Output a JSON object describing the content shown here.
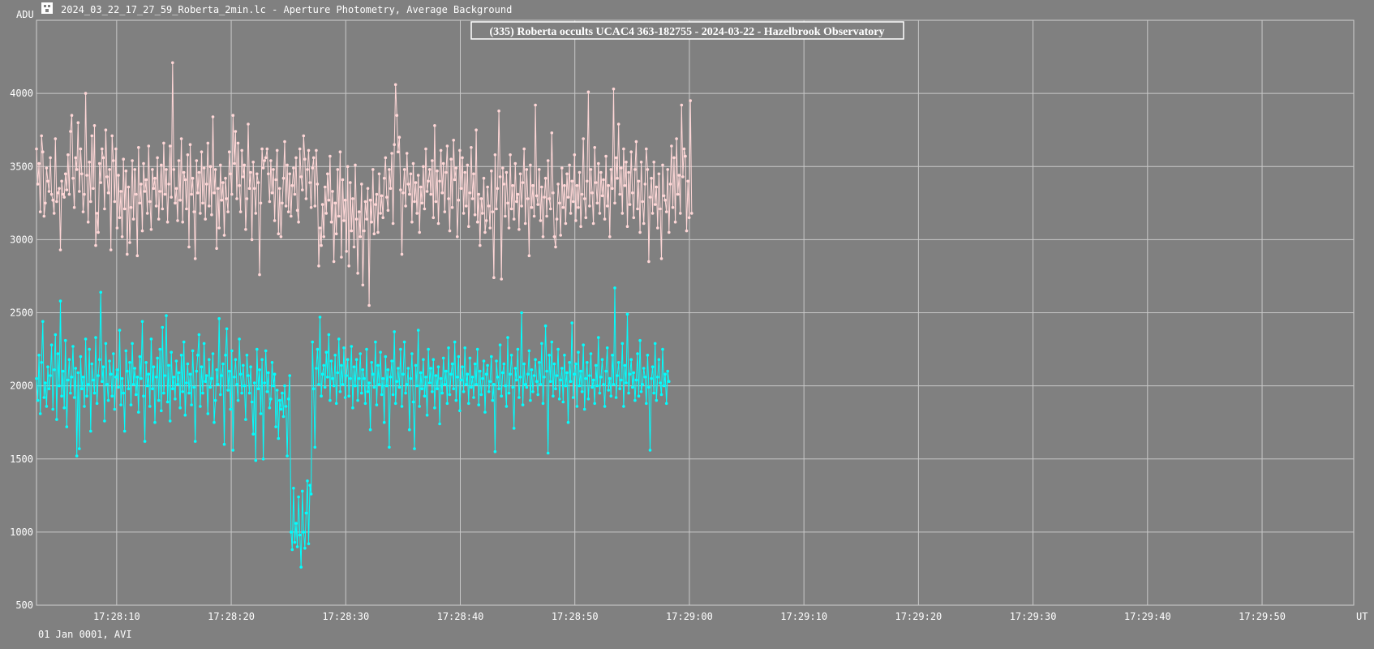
{
  "window": {
    "title": "2024_03_22_17_27_59_Roberta_2min.lc - Aperture Photometry, Average Background",
    "footer": "01 Jan 0001, AVI"
  },
  "icons": {
    "app": "app-logo-icon"
  },
  "chart_data": {
    "type": "line",
    "title": "(335) Roberta occults UCAC4 363-182755 - 2024-03-22 - Hazelbrook Observatory",
    "ylabel": "ADU",
    "xlabel": "UT",
    "ylim": [
      500,
      4500
    ],
    "xlim": [
      "17:28:03",
      "17:29:58"
    ],
    "x_ticks": [
      "17:28:10",
      "17:28:20",
      "17:28:30",
      "17:28:40",
      "17:28:50",
      "17:29:00",
      "17:29:10",
      "17:29:20",
      "17:29:30",
      "17:29:40",
      "17:29:50"
    ],
    "y_ticks": [
      500,
      1000,
      1500,
      2000,
      2500,
      3000,
      3500,
      4000
    ],
    "grid": true,
    "colors": {
      "background": "#808080",
      "grid": "#c8c8c8",
      "text": "#ffffff"
    },
    "series": [
      {
        "color": "#ffd7d7",
        "x_start": "17:28:03",
        "x_step_s": 0.11,
        "values": [
          3620,
          3380,
          3520,
          3190,
          3710,
          3600,
          3160,
          3250,
          3490,
          3400,
          3330,
          3560,
          3310,
          3270,
          3180,
          3690,
          3260,
          3320,
          3350,
          2930,
          3400,
          3310,
          3290,
          3450,
          3340,
          3580,
          3310,
          3740,
          3850,
          3420,
          3220,
          3560,
          3480,
          3800,
          3330,
          3620,
          3450,
          3190,
          3310,
          4000,
          3440,
          3120,
          3530,
          3260,
          3710,
          3350,
          3780,
          2960,
          3180,
          3050,
          3520,
          3390,
          3620,
          3560,
          3210,
          3750,
          3430,
          3320,
          3480,
          2930,
          3710,
          3540,
          3260,
          3620,
          3080,
          3440,
          3150,
          3330,
          3020,
          3550,
          3210,
          3470,
          2900,
          3360,
          2980,
          3220,
          3540,
          3140,
          3480,
          3310,
          2890,
          3630,
          3250,
          3380,
          3060,
          3520,
          3330,
          3410,
          3180,
          3640,
          3260,
          3070,
          3480,
          3350,
          3420,
          3230,
          3560,
          3140,
          3330,
          3510,
          3210,
          3660,
          3310,
          3480,
          3120,
          3380,
          3640,
          3290,
          4210,
          3480,
          3250,
          3350,
          3130,
          3540,
          3270,
          3690,
          3120,
          3460,
          3410,
          3210,
          3580,
          2950,
          3650,
          3310,
          3420,
          3190,
          2870,
          3540,
          3320,
          3460,
          3180,
          3600,
          3250,
          3490,
          3140,
          3380,
          3660,
          3230,
          3500,
          3170,
          3840,
          3320,
          3480,
          2940,
          3350,
          3080,
          3510,
          3270,
          3390,
          3030,
          3420,
          3280,
          3190,
          3600,
          3450,
          3310,
          3850,
          3520,
          3740,
          3280,
          3660,
          3370,
          3190,
          3610,
          3430,
          3510,
          3070,
          3280,
          3790,
          3350,
          3460,
          3000,
          3530,
          3350,
          3180,
          3450,
          3390,
          2760,
          3250,
          3620,
          3490,
          3540,
          3560,
          3620,
          3450,
          3260,
          3540,
          3320,
          3480,
          3130,
          3410,
          3610,
          3040,
          3350,
          3020,
          3250,
          3420,
          3670,
          3230,
          3510,
          3190,
          3450,
          3160,
          3370,
          3490,
          3310,
          3560,
          3200,
          3120,
          3620,
          3430,
          3340,
          3710,
          3550,
          3280,
          3480,
          3610,
          3390,
          3220,
          3490,
          3560,
          3230,
          3610,
          3380,
          2820,
          3080,
          2960,
          3240,
          3020,
          3360,
          3180,
          3450,
          3270,
          3570,
          3120,
          3330,
          2850,
          3250,
          3040,
          3480,
          3160,
          3600,
          2880,
          3410,
          3130,
          3270,
          2920,
          3500,
          2820,
          3390,
          3060,
          3280,
          2950,
          3510,
          3140,
          2770,
          3190,
          3020,
          3380,
          2690,
          3060,
          3260,
          3140,
          3350,
          2550,
          3270,
          3120,
          3480,
          3040,
          3240,
          3310,
          3050,
          3450,
          3180,
          3300,
          3150,
          3420,
          3560,
          3290,
          3200,
          3480,
          3350,
          3590,
          3110,
          3650,
          4060,
          3850,
          3600,
          3700,
          3340,
          2900,
          3320,
          3480,
          3230,
          3590,
          3380,
          3310,
          3450,
          3120,
          3520,
          3260,
          3390,
          3180,
          3440,
          3050,
          3360,
          3250,
          3500,
          3210,
          3620,
          3330,
          3400,
          3480,
          3310,
          3540,
          3150,
          3780,
          3260,
          3470,
          3110,
          3400,
          3610,
          3320,
          3520,
          3190,
          3460,
          3640,
          3280,
          3060,
          3550,
          3220,
          3680,
          3410,
          3490,
          3020,
          3270,
          3610,
          3350,
          3560,
          3180,
          3460,
          3230,
          3510,
          3090,
          3320,
          3630,
          3280,
          3450,
          3170,
          3750,
          3120,
          3310,
          2960,
          3280,
          3180,
          3420,
          3050,
          3130,
          3360,
          3230,
          3080,
          3470,
          3190,
          2740,
          3580,
          3210,
          3350,
          3880,
          3430,
          2730,
          3490,
          3380,
          3160,
          3460,
          3250,
          3080,
          3580,
          3210,
          3370,
          3140,
          3520,
          3260,
          3310,
          3070,
          3450,
          3230,
          3390,
          3620,
          3110,
          3480,
          3280,
          2890,
          3510,
          3220,
          3370,
          3160,
          3920,
          3300,
          3240,
          3480,
          3130,
          3360,
          3020,
          3290,
          3420,
          3160,
          3540,
          3280,
          3210,
          3730,
          3320,
          3020,
          2950,
          3140,
          3380,
          3250,
          3030,
          3490,
          3220,
          3370,
          3110,
          3450,
          3290,
          3510,
          3180,
          3400,
          3260,
          3580,
          3130,
          3370,
          3220,
          3460,
          3090,
          3310,
          3690,
          3280,
          3150,
          3400,
          4010,
          3230,
          3480,
          3320,
          3110,
          3630,
          3390,
          3250,
          3520,
          3180,
          3460,
          3300,
          3410,
          3140,
          3570,
          3230,
          3370,
          3020,
          3480,
          3350,
          4030,
          3250,
          3560,
          3420,
          3790,
          3310,
          3490,
          3180,
          3620,
          3370,
          3530,
          3090,
          3460,
          3240,
          3600,
          3320,
          3150,
          3480,
          3670,
          3210,
          3400,
          3050,
          3530,
          3260,
          3110,
          3380,
          3620,
          3480,
          2850,
          3290,
          3420,
          3180,
          3530,
          3240,
          3360,
          3080,
          3450,
          3210,
          2870,
          3510,
          3300,
          3270,
          3190,
          3480,
          3050,
          3380,
          3640,
          3220,
          3560,
          3120,
          3690,
          3310,
          3440,
          3180,
          3920,
          3430,
          3620,
          3570,
          3060,
          3400,
          3150,
          3950,
          3180
        ]
      },
      {
        "color": "#00ffff",
        "x_start": "17:28:03",
        "x_step_s": 0.11,
        "values": [
          2050,
          1900,
          2210,
          1810,
          2160,
          2440,
          1920,
          2020,
          1860,
          2130,
          1980,
          2070,
          2280,
          1840,
          2110,
          2350,
          1770,
          2220,
          2000,
          2580,
          1930,
          2100,
          1850,
          2310,
          1720,
          2040,
          2180,
          1950,
          2060,
          2270,
          1920,
          2120,
          1520,
          2090,
          1570,
          2200,
          1980,
          2060,
          1860,
          2320,
          1930,
          2010,
          2250,
          1690,
          2150,
          2040,
          1950,
          2330,
          1880,
          2070,
          2180,
          2640,
          2030,
          2130,
          1760,
          2290,
          2010,
          1900,
          2170,
          2080,
          1930,
          2220,
          1840,
          2060,
          2110,
          1990,
          2380,
          1870,
          2050,
          1950,
          1690,
          2240,
          2100,
          1980,
          2160,
          1870,
          2290,
          2010,
          2120,
          1940,
          2060,
          1820,
          2200,
          2050,
          2440,
          1930,
          1620,
          2160,
          2000,
          2080,
          1860,
          2320,
          1980,
          2130,
          1750,
          2060,
          2190,
          1900,
          2250,
          1830,
          2400,
          1950,
          2070,
          2480,
          1890,
          2140,
          1760,
          2230,
          1980,
          2060,
          1910,
          2170,
          2010,
          2090,
          1850,
          2210,
          1960,
          2300,
          1800,
          2020,
          2150,
          1950,
          2080,
          1870,
          2240,
          1990,
          1620,
          2100,
          2210,
          2350,
          1860,
          2130,
          1950,
          2290,
          2030,
          2070,
          1810,
          2180,
          1990,
          2050,
          2220,
          1750,
          1900,
          2110,
          2010,
          2460,
          1940,
          2070,
          2150,
          1600,
          2210,
          2390,
          1970,
          2100,
          1840,
          2240,
          1560,
          2060,
          2180,
          2010,
          1900,
          2320,
          2080,
          1950,
          2140,
          2000,
          1770,
          2210,
          2070,
          1950,
          2130,
          1890,
          1670,
          2020,
          1490,
          2250,
          1980,
          2110,
          1810,
          2180,
          1500,
          2020,
          2240,
          1960,
          2090,
          1850,
          1910,
          2160,
          2000,
          2080,
          1720,
          1970,
          1640,
          1900,
          1840,
          1950,
          1790,
          2000,
          1860,
          1520,
          1910,
          2070,
          1000,
          880,
          1300,
          930,
          1060,
          900,
          1240,
          980,
          760,
          1280,
          1000,
          890,
          1130,
          1350,
          920,
          1320,
          1260,
          2300,
          1980,
          1580,
          2120,
          2250,
          2010,
          2470,
          1930,
          2080,
          2140,
          1990,
          2230,
          2060,
          2350,
          1900,
          2170,
          2050,
          2000,
          2210,
          1880,
          2090,
          2320,
          1960,
          2140,
          2010,
          2260,
          1920,
          2070,
          2180,
          1930,
          2050,
          2270,
          1850,
          2130,
          2000,
          2180,
          1900,
          2050,
          2220,
          1950,
          2110,
          2050,
          1880,
          2250,
          1960,
          2020,
          1700,
          2160,
          2080,
          1990,
          2300,
          1870,
          2140,
          2010,
          2230,
          1940,
          2050,
          1750,
          2200,
          2000,
          2110,
          1580,
          2060,
          2170,
          1940,
          2370,
          1880,
          2030,
          2120,
          1990,
          2250,
          1860,
          2080,
          2300,
          1950,
          2010,
          2120,
          1700,
          2050,
          2220,
          1890,
          1570,
          2140,
          2000,
          2380,
          1860,
          2090,
          1980,
          2180,
          1930,
          2060,
          1800,
          2250,
          2020,
          2120,
          1960,
          2180,
          1850,
          2070,
          1980,
          2130,
          1740,
          2050,
          1950,
          2190,
          2010,
          2100,
          1880,
          2260,
          1940,
          2080,
          2150,
          1980,
          2300,
          1900,
          2060,
          2200,
          1830,
          2040,
          2130,
          1960,
          2260,
          2010,
          2080,
          1880,
          2190,
          1990,
          2060,
          1920,
          2150,
          2010,
          2250,
          1870,
          2100,
          1940,
          2050,
          2170,
          1820,
          2080,
          2140,
          1960,
          2030,
          2200,
          1900,
          2010,
          1550,
          2170,
          2060,
          1980,
          2280,
          1930,
          2090,
          2150,
          2000,
          1860,
          2330,
          1950,
          2080,
          2210,
          1990,
          1710,
          2120,
          2040,
          2250,
          1920,
          2060,
          2500,
          1870,
          2150,
          2010,
          1990,
          2080,
          2240,
          1900,
          2110,
          1960,
          2070,
          2180,
          2030,
          1940,
          2160,
          2010,
          2290,
          1880,
          2060,
          2410,
          2100,
          1540,
          2210,
          2030,
          2300,
          1930,
          2150,
          1980,
          2070,
          2250,
          1910,
          2040,
          2120,
          1890,
          2210,
          2000,
          2090,
          1750,
          2160,
          2030,
          2430,
          1920,
          2080,
          2150,
          1860,
          2230,
          2000,
          2100,
          1960,
          2280,
          1840,
          2050,
          2160,
          1910,
          2070,
          2220,
          1990,
          2040,
          1880,
          2140,
          2000,
          2330,
          1950,
          2060,
          2180,
          2010,
          1860,
          2100,
          2260,
          1970,
          2050,
          1930,
          2210,
          2010,
          2670,
          1920,
          2070,
          2160,
          1980,
          2040,
          2290,
          1860,
          2140,
          2020,
          2490,
          1950,
          2080,
          2180,
          1990,
          2090,
          1900,
          2040,
          2220,
          1930,
          2310,
          1960,
          2010,
          2120,
          2060,
          1880,
          2210,
          1990,
          1560,
          2050,
          2130,
          1950,
          2290,
          1900,
          2060,
          2180,
          2020,
          1940,
          2250,
          2000,
          2080,
          1880,
          2100,
          2030
        ]
      }
    ]
  }
}
